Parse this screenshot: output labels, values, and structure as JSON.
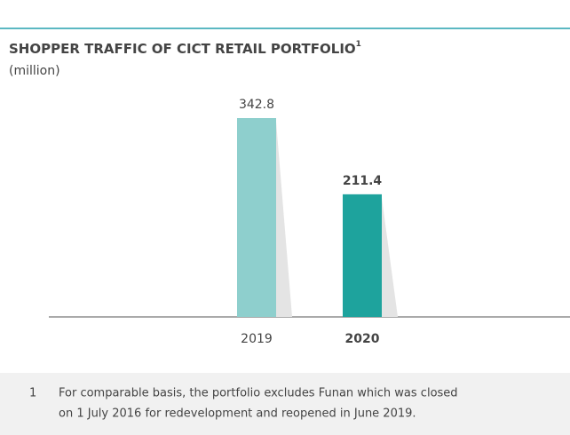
{
  "chart_data": {
    "type": "bar",
    "title": "SHOPPER TRAFFIC OF CICT RETAIL PORTFOLIO",
    "title_note": "1",
    "subtitle": "(million)",
    "categories": [
      "2019",
      "2020"
    ],
    "values": [
      342.8,
      211.4
    ],
    "colors": [
      "#8ecfcd",
      "#1ea39d"
    ],
    "footnote": {
      "marker": "1",
      "lines": [
        "For comparable basis, the portfolio excludes Funan which was closed",
        "on 1 July 2016 for redevelopment and reopened in June 2019."
      ]
    }
  }
}
